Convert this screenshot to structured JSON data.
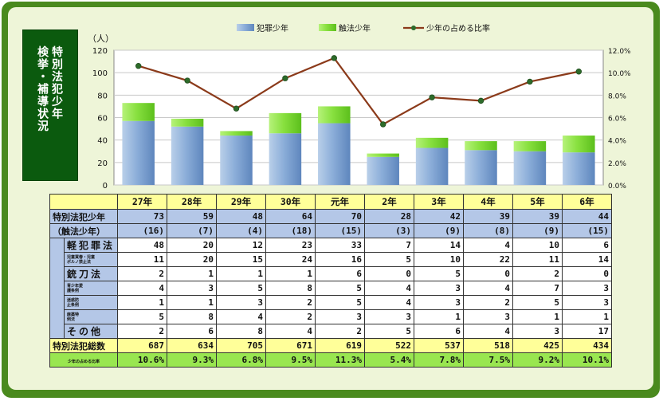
{
  "title": "特別法犯少年 検挙・補導状況",
  "title_lines": [
    "特別法犯少年",
    "検挙・補導状況"
  ],
  "chart_data": {
    "type": "bar+line",
    "categories": [
      "27年",
      "28年",
      "29年",
      "30年",
      "元年",
      "2年",
      "3年",
      "4年",
      "5年",
      "6年"
    ],
    "series": [
      {
        "name": "犯罪少年",
        "type": "stacked-bar",
        "values": [
          57,
          52,
          44,
          46,
          55,
          25,
          33,
          31,
          30,
          29
        ],
        "color": "#7ea6d8"
      },
      {
        "name": "触法少年",
        "type": "stacked-bar",
        "values": [
          16,
          7,
          4,
          18,
          15,
          3,
          9,
          8,
          9,
          15
        ],
        "color": "#7fe03a"
      },
      {
        "name": "少年の占める比率",
        "type": "line",
        "axis": "right",
        "values": [
          10.6,
          9.3,
          6.8,
          9.5,
          11.3,
          5.4,
          7.8,
          7.5,
          9.2,
          10.1
        ],
        "color": "#8b3a1a"
      }
    ],
    "y_left": {
      "unit": "（人）",
      "min": 0,
      "max": 120,
      "ticks": [
        "0",
        "20",
        "40",
        "60",
        "80",
        "100",
        "120"
      ]
    },
    "y_right": {
      "min": 0,
      "max": 12,
      "ticks": [
        "0.0%",
        "2.0%",
        "4.0%",
        "6.0%",
        "8.0%",
        "10.0%",
        "12.0%"
      ]
    },
    "legend_position": "top",
    "grid": true
  },
  "table": {
    "headers": [
      "27年",
      "28年",
      "29年",
      "30年",
      "元年",
      "2年",
      "3年",
      "4年",
      "5年",
      "6年"
    ],
    "total_label": "特別法犯少年",
    "total_sub_label": "（触法少年）",
    "totals": [
      "73",
      "59",
      "48",
      "64",
      "70",
      "28",
      "42",
      "39",
      "39",
      "44"
    ],
    "totals_sub": [
      "(16)",
      "(7)",
      "(4)",
      "(18)",
      "(15)",
      "(3)",
      "(9)",
      "(8)",
      "(9)",
      "(15)"
    ],
    "rows": [
      {
        "label": "軽犯罪法",
        "values": [
          "48",
          "20",
          "12",
          "23",
          "33",
          "7",
          "14",
          "4",
          "10",
          "6"
        ]
      },
      {
        "label": "児童買春・児童ポルノ禁止法",
        "values": [
          "11",
          "20",
          "15",
          "24",
          "16",
          "5",
          "10",
          "22",
          "11",
          "14"
        ]
      },
      {
        "label": "銃刀法",
        "values": [
          "2",
          "1",
          "1",
          "1",
          "6",
          "0",
          "5",
          "0",
          "2",
          "0"
        ]
      },
      {
        "label": "青少年愛護条例",
        "values": [
          "4",
          "3",
          "5",
          "8",
          "5",
          "4",
          "3",
          "4",
          "7",
          "3"
        ]
      },
      {
        "label": "迷惑防止条例",
        "values": [
          "1",
          "1",
          "3",
          "2",
          "5",
          "4",
          "3",
          "2",
          "5",
          "3"
        ]
      },
      {
        "label": "麻薬特例法",
        "values": [
          "5",
          "8",
          "4",
          "2",
          "3",
          "3",
          "1",
          "3",
          "1",
          "1"
        ]
      },
      {
        "label": "その他",
        "values": [
          "2",
          "6",
          "8",
          "4",
          "2",
          "5",
          "6",
          "4",
          "3",
          "17"
        ]
      }
    ],
    "grand_label": "特別法犯総数",
    "grand": [
      "687",
      "634",
      "705",
      "671",
      "619",
      "522",
      "537",
      "518",
      "425",
      "434"
    ],
    "ratio_label": "少年の占める比率",
    "ratio": [
      "10.6%",
      "9.3%",
      "6.8%",
      "9.5%",
      "11.3%",
      "5.4%",
      "7.8%",
      "7.5%",
      "9.2%",
      "10.1%"
    ]
  }
}
